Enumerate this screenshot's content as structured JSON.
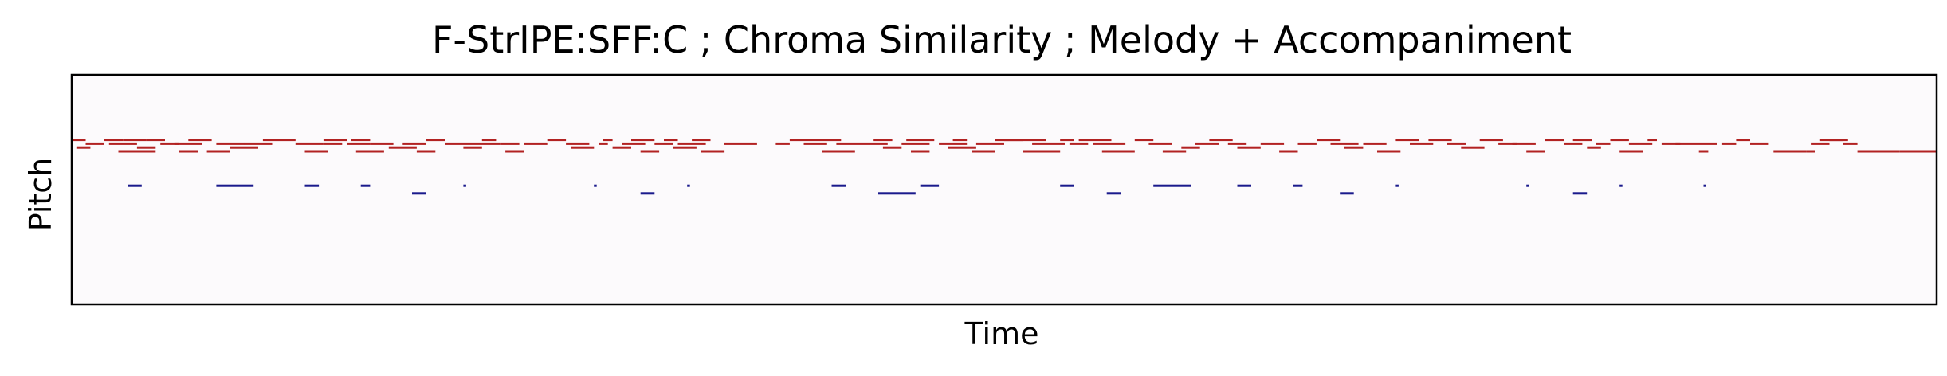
{
  "chart_data": {
    "type": "piano-roll",
    "title": "F-StrIPE:SFF:C ; Chroma Similarity ; Melody + Accompaniment",
    "xlabel": "Time",
    "ylabel": "Pitch",
    "xticks": [],
    "yticks": [],
    "xlim": [
      0,
      200
    ],
    "ylim": [
      0,
      30
    ],
    "grid": false,
    "legend": "none",
    "colors": {
      "plot_background": "#fcfafc",
      "melody": "#b22222",
      "accompaniment": "#1a1a8c",
      "frame": "#000000"
    },
    "series": [
      {
        "role": "melody",
        "color": "#b22222",
        "notes": [
          [
            0.0,
            1.5,
            21.5
          ],
          [
            0.5,
            2.0,
            20.5
          ],
          [
            1.5,
            3.5,
            21.0
          ],
          [
            3.5,
            5.5,
            21.5
          ],
          [
            5.5,
            8.0,
            21.5
          ],
          [
            4.0,
            7.0,
            21.0
          ],
          [
            8.0,
            10.0,
            21.5
          ],
          [
            7.0,
            9.0,
            20.5
          ],
          [
            9.5,
            11.5,
            21.0
          ],
          [
            5.0,
            9.0,
            20.0
          ],
          [
            11.0,
            14.0,
            21.0
          ],
          [
            12.5,
            15.0,
            21.5
          ],
          [
            11.5,
            13.5,
            20.0
          ],
          [
            15.5,
            18.5,
            21.0
          ],
          [
            14.5,
            17.0,
            20.0
          ],
          [
            18.5,
            21.5,
            21.0
          ],
          [
            20.5,
            24.0,
            21.5
          ],
          [
            17.0,
            20.0,
            20.5
          ],
          [
            24.0,
            27.0,
            21.0
          ],
          [
            25.0,
            27.5,
            20.0
          ],
          [
            27.0,
            29.0,
            21.0
          ],
          [
            27.0,
            29.5,
            21.5
          ],
          [
            29.5,
            32.0,
            21.0
          ],
          [
            30.0,
            32.0,
            21.5
          ],
          [
            30.5,
            33.5,
            20.0
          ],
          [
            32.0,
            34.5,
            21.0
          ],
          [
            34.0,
            37.0,
            20.5
          ],
          [
            35.5,
            38.0,
            21.0
          ],
          [
            37.0,
            39.0,
            20.0
          ],
          [
            38.0,
            40.0,
            21.5
          ],
          [
            40.0,
            43.0,
            21.0
          ],
          [
            43.0,
            46.0,
            21.0
          ],
          [
            42.0,
            44.0,
            20.5
          ],
          [
            44.0,
            45.5,
            21.5
          ],
          [
            46.0,
            48.0,
            21.0
          ],
          [
            46.5,
            48.5,
            20.0
          ],
          [
            48.5,
            51.0,
            21.0
          ],
          [
            51.0,
            53.0,
            21.5
          ],
          [
            53.0,
            55.5,
            21.0
          ],
          [
            53.5,
            56.0,
            20.5
          ],
          [
            56.5,
            57.5,
            21.0
          ],
          [
            57.0,
            58.0,
            21.5
          ],
          [
            58.0,
            60.0,
            20.5
          ],
          [
            59.0,
            61.5,
            21.0
          ],
          [
            60.0,
            62.5,
            21.5
          ],
          [
            61.0,
            63.0,
            20.0
          ],
          [
            62.5,
            64.5,
            21.0
          ],
          [
            63.5,
            65.0,
            21.5
          ],
          [
            64.5,
            67.0,
            20.5
          ],
          [
            65.0,
            68.0,
            21.0
          ],
          [
            66.5,
            68.5,
            21.5
          ],
          [
            67.5,
            70.0,
            20.0
          ],
          [
            70.0,
            73.5,
            21.0
          ],
          [
            75.5,
            77.0,
            21.0
          ],
          [
            77.0,
            80.0,
            21.5
          ],
          [
            78.5,
            81.0,
            21.0
          ],
          [
            80.0,
            82.5,
            21.5
          ],
          [
            80.5,
            84.0,
            20.0
          ],
          [
            82.0,
            85.0,
            21.0
          ],
          [
            85.0,
            87.5,
            21.0
          ],
          [
            86.0,
            88.0,
            21.5
          ],
          [
            87.0,
            89.0,
            20.5
          ],
          [
            89.0,
            92.0,
            21.0
          ],
          [
            89.5,
            92.5,
            21.5
          ],
          [
            90.0,
            92.0,
            20.0
          ],
          [
            93.0,
            96.0,
            21.0
          ],
          [
            94.0,
            97.0,
            20.5
          ],
          [
            94.5,
            96.0,
            21.5
          ],
          [
            96.5,
            99.0,
            20.0
          ],
          [
            97.0,
            100.0,
            21.0
          ],
          [
            99.0,
            102.0,
            21.5
          ],
          [
            100.0,
            104.5,
            21.5
          ],
          [
            103.0,
            106.5,
            21.0
          ],
          [
            102.0,
            106.0,
            20.0
          ],
          [
            106.0,
            107.5,
            21.5
          ],
          [
            107.0,
            109.0,
            21.0
          ],
          [
            108.0,
            111.5,
            21.5
          ],
          [
            109.5,
            113.0,
            21.0
          ],
          [
            110.5,
            114.0,
            20.0
          ],
          [
            114.0,
            116.0,
            21.5
          ],
          [
            115.5,
            118.0,
            21.0
          ],
          [
            117.0,
            119.5,
            20.0
          ],
          [
            119.0,
            121.0,
            20.5
          ],
          [
            120.5,
            123.0,
            21.0
          ],
          [
            122.0,
            124.5,
            21.5
          ],
          [
            124.0,
            126.0,
            21.0
          ],
          [
            125.0,
            127.5,
            20.5
          ],
          [
            127.5,
            130.0,
            21.0
          ],
          [
            129.5,
            131.5,
            20.0
          ],
          [
            131.5,
            133.5,
            21.0
          ],
          [
            133.5,
            136.0,
            21.5
          ],
          [
            135.0,
            138.0,
            21.0
          ],
          [
            136.5,
            138.5,
            20.5
          ],
          [
            138.5,
            141.0,
            21.0
          ],
          [
            140.0,
            142.5,
            20.0
          ],
          [
            142.0,
            144.5,
            21.5
          ],
          [
            143.5,
            146.0,
            21.0
          ],
          [
            145.5,
            148.0,
            21.5
          ],
          [
            147.5,
            149.5,
            21.0
          ],
          [
            149.0,
            151.5,
            20.5
          ],
          [
            151.0,
            153.5,
            21.5
          ],
          [
            153.0,
            155.0,
            21.0
          ],
          [
            154.5,
            157.0,
            21.0
          ],
          [
            156.0,
            158.0,
            20.0
          ],
          [
            158.0,
            160.0,
            21.5
          ],
          [
            160.0,
            162.0,
            21.0
          ],
          [
            161.0,
            163.0,
            21.5
          ],
          [
            162.5,
            164.0,
            20.5
          ],
          [
            163.5,
            165.0,
            21.0
          ],
          [
            165.0,
            167.0,
            21.5
          ],
          [
            166.0,
            168.5,
            20.0
          ],
          [
            167.0,
            169.5,
            21.0
          ],
          [
            169.0,
            170.0,
            21.5
          ],
          [
            170.5,
            172.5,
            21.0
          ],
          [
            172.0,
            175.0,
            21.0
          ],
          [
            174.5,
            175.5,
            20.0
          ],
          [
            175.0,
            176.5,
            21.0
          ],
          [
            177.0,
            178.5,
            21.0
          ],
          [
            178.5,
            180.0,
            21.5
          ],
          [
            180.0,
            182.0,
            21.0
          ],
          [
            182.5,
            186.0,
            20.0
          ],
          [
            186.0,
            187.0,
            20.0
          ],
          [
            187.5,
            190.0,
            21.5
          ],
          [
            190.0,
            191.5,
            21.0
          ],
          [
            191.5,
            196.0,
            20.0
          ],
          [
            196.0,
            200.0,
            20.0
          ],
          [
            186.5,
            188.5,
            21.0
          ],
          [
            188.5,
            190.5,
            21.5
          ]
        ]
      },
      {
        "role": "accompaniment",
        "color": "#1a1a8c",
        "notes": [
          [
            6.0,
            7.5,
            15.5
          ],
          [
            15.5,
            19.5,
            15.5
          ],
          [
            25.0,
            26.5,
            15.5
          ],
          [
            31.0,
            32.0,
            15.5
          ],
          [
            36.5,
            38.0,
            14.5
          ],
          [
            42.0,
            42.3,
            15.5
          ],
          [
            56.0,
            56.3,
            15.5
          ],
          [
            61.0,
            62.5,
            14.5
          ],
          [
            66.0,
            66.3,
            15.5
          ],
          [
            81.5,
            83.0,
            15.5
          ],
          [
            86.5,
            90.5,
            14.5
          ],
          [
            91.0,
            93.0,
            15.5
          ],
          [
            106.0,
            107.5,
            15.5
          ],
          [
            111.0,
            112.5,
            14.5
          ],
          [
            116.0,
            120.0,
            15.5
          ],
          [
            125.0,
            126.5,
            15.5
          ],
          [
            131.0,
            132.0,
            15.5
          ],
          [
            136.0,
            137.5,
            14.5
          ],
          [
            142.0,
            142.3,
            15.5
          ],
          [
            156.0,
            156.3,
            15.5
          ],
          [
            161.0,
            162.5,
            14.5
          ],
          [
            166.0,
            166.3,
            15.5
          ],
          [
            175.0,
            175.3,
            15.5
          ]
        ]
      }
    ]
  }
}
